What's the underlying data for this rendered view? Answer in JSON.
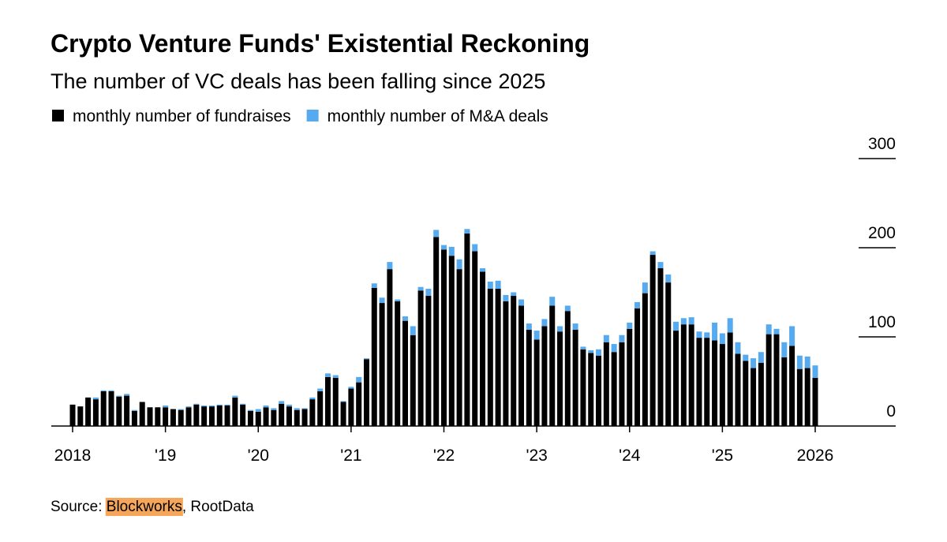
{
  "chart_data": {
    "type": "bar",
    "stacked": true,
    "title": "Crypto Venture Funds' Existential Reckoning",
    "subtitle": "The number of VC deals has been falling since 2025",
    "source": {
      "label": "Source: ",
      "highlight": "Blockworks",
      "rest": ", RootData"
    },
    "categories": [
      "2018",
      null,
      null,
      null,
      null,
      null,
      null,
      null,
      null,
      null,
      null,
      null,
      "'19",
      null,
      null,
      null,
      null,
      null,
      null,
      null,
      null,
      null,
      null,
      null,
      "'20",
      null,
      null,
      null,
      null,
      null,
      null,
      null,
      null,
      null,
      null,
      null,
      "'21",
      null,
      null,
      null,
      null,
      null,
      null,
      null,
      null,
      null,
      null,
      null,
      "'22",
      null,
      null,
      null,
      null,
      null,
      null,
      null,
      null,
      null,
      null,
      null,
      "'23",
      null,
      null,
      null,
      null,
      null,
      null,
      null,
      null,
      null,
      null,
      null,
      "'24",
      null,
      null,
      null,
      null,
      null,
      null,
      null,
      null,
      null,
      null,
      null,
      "'25",
      null,
      null,
      null,
      null,
      null,
      null,
      null,
      null,
      null,
      null,
      null,
      "2026"
    ],
    "series": [
      {
        "name": "monthly number of fundraises",
        "color": "#000000",
        "values": [
          24,
          22,
          32,
          30,
          39,
          39,
          33,
          34,
          17,
          27,
          21,
          21,
          21,
          19,
          18,
          21,
          24,
          22,
          22,
          23,
          23,
          32,
          24,
          17,
          16,
          21,
          18,
          25,
          22,
          18,
          19,
          30,
          39,
          55,
          54,
          27,
          42,
          49,
          75,
          155,
          138,
          176,
          140,
          118,
          102,
          152,
          146,
          212,
          198,
          191,
          176,
          216,
          196,
          173,
          154,
          154,
          140,
          146,
          135,
          108,
          97,
          112,
          135,
          106,
          129,
          108,
          86,
          82,
          79,
          94,
          83,
          94,
          109,
          132,
          149,
          192,
          177,
          161,
          107,
          114,
          114,
          99,
          99,
          96,
          92,
          105,
          81,
          73,
          65,
          71,
          103,
          103,
          77,
          90,
          64,
          65,
          54
        ]
      },
      {
        "name": "monthly number of M&A deals",
        "color": "#56abf0",
        "values": [
          0,
          0,
          0,
          2,
          1,
          1,
          1,
          2,
          1,
          0,
          0,
          0,
          2,
          0,
          1,
          1,
          1,
          1,
          1,
          1,
          1,
          2,
          1,
          1,
          3,
          2,
          2,
          3,
          2,
          2,
          1,
          2,
          3,
          4,
          3,
          1,
          2,
          6,
          1,
          5,
          6,
          8,
          2,
          5,
          10,
          4,
          8,
          8,
          5,
          10,
          11,
          5,
          8,
          4,
          8,
          9,
          7,
          4,
          7,
          7,
          10,
          8,
          10,
          6,
          6,
          7,
          3,
          3,
          7,
          8,
          9,
          8,
          7,
          7,
          12,
          4,
          7,
          9,
          10,
          7,
          8,
          7,
          6,
          20,
          12,
          16,
          13,
          7,
          11,
          12,
          11,
          6,
          17,
          22,
          15,
          13,
          14
        ]
      }
    ],
    "ylim": [
      0,
      300
    ],
    "yticks": [
      0,
      100,
      200,
      300
    ],
    "grid": true,
    "legend": "top-left"
  }
}
